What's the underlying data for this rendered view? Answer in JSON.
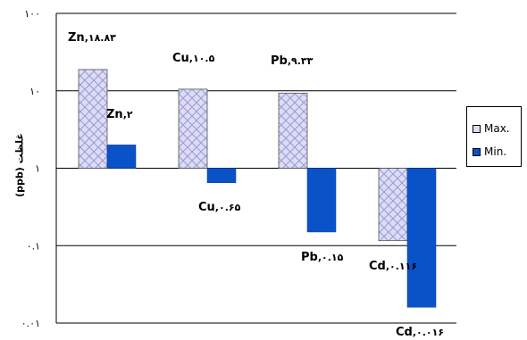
{
  "chart_data": {
    "type": "bar",
    "scale": "log",
    "ylim": [
      0.01,
      100
    ],
    "ylabel": "(ppb)    غلظت",
    "yticks": [
      100,
      10,
      1,
      0.1,
      0.01
    ],
    "ytick_labels": [
      "۱۰۰",
      "۱۰",
      "۱",
      "۰.۱",
      "۰.۰۱"
    ],
    "categories": [
      "Zn",
      "Cu",
      "Pb",
      "Cd"
    ],
    "series": [
      {
        "name": "Max.",
        "values": [
          18.83,
          10.5,
          9.33,
          0.116
        ],
        "value_labels": [
          "۱۸.۸۳",
          "۱۰.۵",
          "۹.۳۳",
          "۰.۱۱۶"
        ]
      },
      {
        "name": "Min.",
        "values": [
          2,
          0.65,
          0.15,
          0.016
        ],
        "value_labels": [
          "۲",
          "۰.۶۵",
          "۰.۱۵",
          "۰.۰۱۶"
        ]
      }
    ],
    "grid": true,
    "legend_position": "right",
    "colors": {
      "max_fill": "#dcdcf4",
      "max_pattern": "#9a9ad8",
      "min_fill": "#0a52c8"
    }
  }
}
